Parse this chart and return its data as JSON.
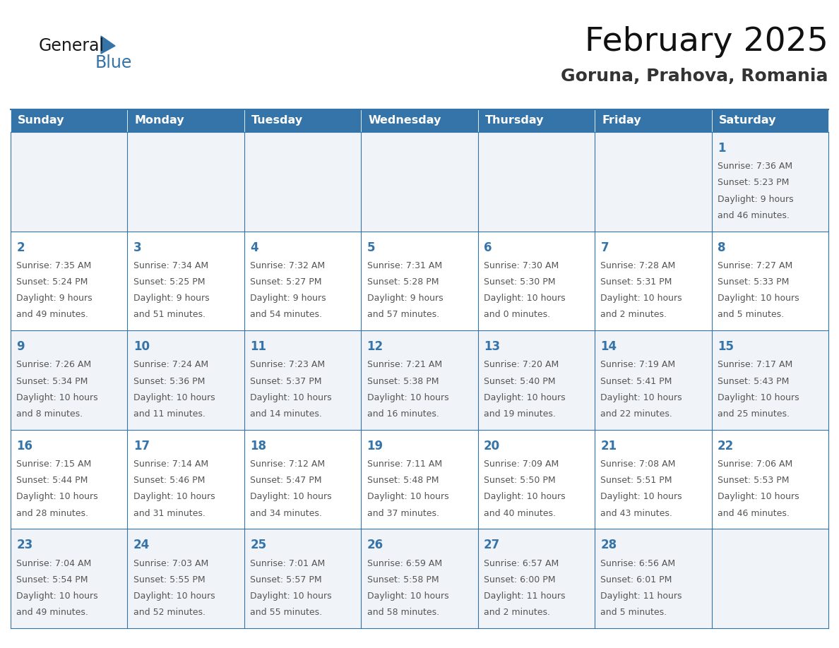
{
  "title": "February 2025",
  "subtitle": "Goruna, Prahova, Romania",
  "days_of_week": [
    "Sunday",
    "Monday",
    "Tuesday",
    "Wednesday",
    "Thursday",
    "Friday",
    "Saturday"
  ],
  "header_bg_color": "#3574a8",
  "header_text_color": "#ffffff",
  "cell_border_color": "#3574a8",
  "day_number_color": "#3574a8",
  "info_text_color": "#555555",
  "title_color": "#111111",
  "subtitle_color": "#333333",
  "bg_color": "#ffffff",
  "row_bg_even": "#f0f4f8",
  "row_bg_odd": "#ffffff",
  "logo_general_color": "#1a1a1a",
  "logo_blue_color": "#3574a8",
  "calendar_data": [
    [
      null,
      null,
      null,
      null,
      null,
      null,
      {
        "day": 1,
        "sunrise": "7:36 AM",
        "sunset": "5:23 PM",
        "daylight": "9 hours and 46 minutes."
      }
    ],
    [
      {
        "day": 2,
        "sunrise": "7:35 AM",
        "sunset": "5:24 PM",
        "daylight": "9 hours and 49 minutes."
      },
      {
        "day": 3,
        "sunrise": "7:34 AM",
        "sunset": "5:25 PM",
        "daylight": "9 hours and 51 minutes."
      },
      {
        "day": 4,
        "sunrise": "7:32 AM",
        "sunset": "5:27 PM",
        "daylight": "9 hours and 54 minutes."
      },
      {
        "day": 5,
        "sunrise": "7:31 AM",
        "sunset": "5:28 PM",
        "daylight": "9 hours and 57 minutes."
      },
      {
        "day": 6,
        "sunrise": "7:30 AM",
        "sunset": "5:30 PM",
        "daylight": "10 hours and 0 minutes."
      },
      {
        "day": 7,
        "sunrise": "7:28 AM",
        "sunset": "5:31 PM",
        "daylight": "10 hours and 2 minutes."
      },
      {
        "day": 8,
        "sunrise": "7:27 AM",
        "sunset": "5:33 PM",
        "daylight": "10 hours and 5 minutes."
      }
    ],
    [
      {
        "day": 9,
        "sunrise": "7:26 AM",
        "sunset": "5:34 PM",
        "daylight": "10 hours and 8 minutes."
      },
      {
        "day": 10,
        "sunrise": "7:24 AM",
        "sunset": "5:36 PM",
        "daylight": "10 hours and 11 minutes."
      },
      {
        "day": 11,
        "sunrise": "7:23 AM",
        "sunset": "5:37 PM",
        "daylight": "10 hours and 14 minutes."
      },
      {
        "day": 12,
        "sunrise": "7:21 AM",
        "sunset": "5:38 PM",
        "daylight": "10 hours and 16 minutes."
      },
      {
        "day": 13,
        "sunrise": "7:20 AM",
        "sunset": "5:40 PM",
        "daylight": "10 hours and 19 minutes."
      },
      {
        "day": 14,
        "sunrise": "7:19 AM",
        "sunset": "5:41 PM",
        "daylight": "10 hours and 22 minutes."
      },
      {
        "day": 15,
        "sunrise": "7:17 AM",
        "sunset": "5:43 PM",
        "daylight": "10 hours and 25 minutes."
      }
    ],
    [
      {
        "day": 16,
        "sunrise": "7:15 AM",
        "sunset": "5:44 PM",
        "daylight": "10 hours and 28 minutes."
      },
      {
        "day": 17,
        "sunrise": "7:14 AM",
        "sunset": "5:46 PM",
        "daylight": "10 hours and 31 minutes."
      },
      {
        "day": 18,
        "sunrise": "7:12 AM",
        "sunset": "5:47 PM",
        "daylight": "10 hours and 34 minutes."
      },
      {
        "day": 19,
        "sunrise": "7:11 AM",
        "sunset": "5:48 PM",
        "daylight": "10 hours and 37 minutes."
      },
      {
        "day": 20,
        "sunrise": "7:09 AM",
        "sunset": "5:50 PM",
        "daylight": "10 hours and 40 minutes."
      },
      {
        "day": 21,
        "sunrise": "7:08 AM",
        "sunset": "5:51 PM",
        "daylight": "10 hours and 43 minutes."
      },
      {
        "day": 22,
        "sunrise": "7:06 AM",
        "sunset": "5:53 PM",
        "daylight": "10 hours and 46 minutes."
      }
    ],
    [
      {
        "day": 23,
        "sunrise": "7:04 AM",
        "sunset": "5:54 PM",
        "daylight": "10 hours and 49 minutes."
      },
      {
        "day": 24,
        "sunrise": "7:03 AM",
        "sunset": "5:55 PM",
        "daylight": "10 hours and 52 minutes."
      },
      {
        "day": 25,
        "sunrise": "7:01 AM",
        "sunset": "5:57 PM",
        "daylight": "10 hours and 55 minutes."
      },
      {
        "day": 26,
        "sunrise": "6:59 AM",
        "sunset": "5:58 PM",
        "daylight": "10 hours and 58 minutes."
      },
      {
        "day": 27,
        "sunrise": "6:57 AM",
        "sunset": "6:00 PM",
        "daylight": "11 hours and 2 minutes."
      },
      {
        "day": 28,
        "sunrise": "6:56 AM",
        "sunset": "6:01 PM",
        "daylight": "11 hours and 5 minutes."
      },
      null
    ]
  ],
  "num_rows": 5,
  "num_cols": 7,
  "header_font_size": 11.5,
  "day_number_font_size": 12,
  "info_font_size": 9.0,
  "title_font_size": 34,
  "subtitle_font_size": 18
}
